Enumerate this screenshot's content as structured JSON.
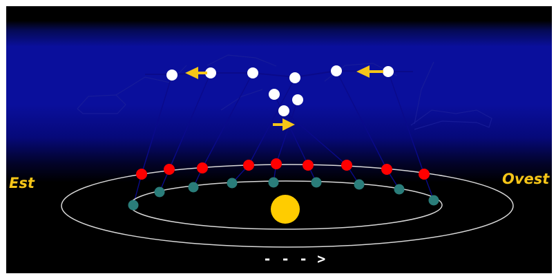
{
  "labels": {
    "east": "Est",
    "west": "Ovest",
    "direction": "- - - >"
  },
  "colors": {
    "background": "#000000",
    "sky_band": "#0a0f9c",
    "sky_glow": "#1a22d8",
    "orbit": "#d9d9d9",
    "sun": "#ffcc00",
    "label": "#f5c518",
    "direction": "#ffffff",
    "planet_apparent": "#ffffff",
    "motion_arrow": "#f5c518",
    "mars_orbit_position": "#ff0000",
    "earth_orbit_position": "#2a7d7a",
    "sight_line": "#0a0a8a",
    "constellation": "#1a1f9a"
  },
  "icons": {
    "sun": "sun-icon",
    "arrow_left": "arrow-left-icon",
    "arrow_right": "arrow-right-icon"
  }
}
